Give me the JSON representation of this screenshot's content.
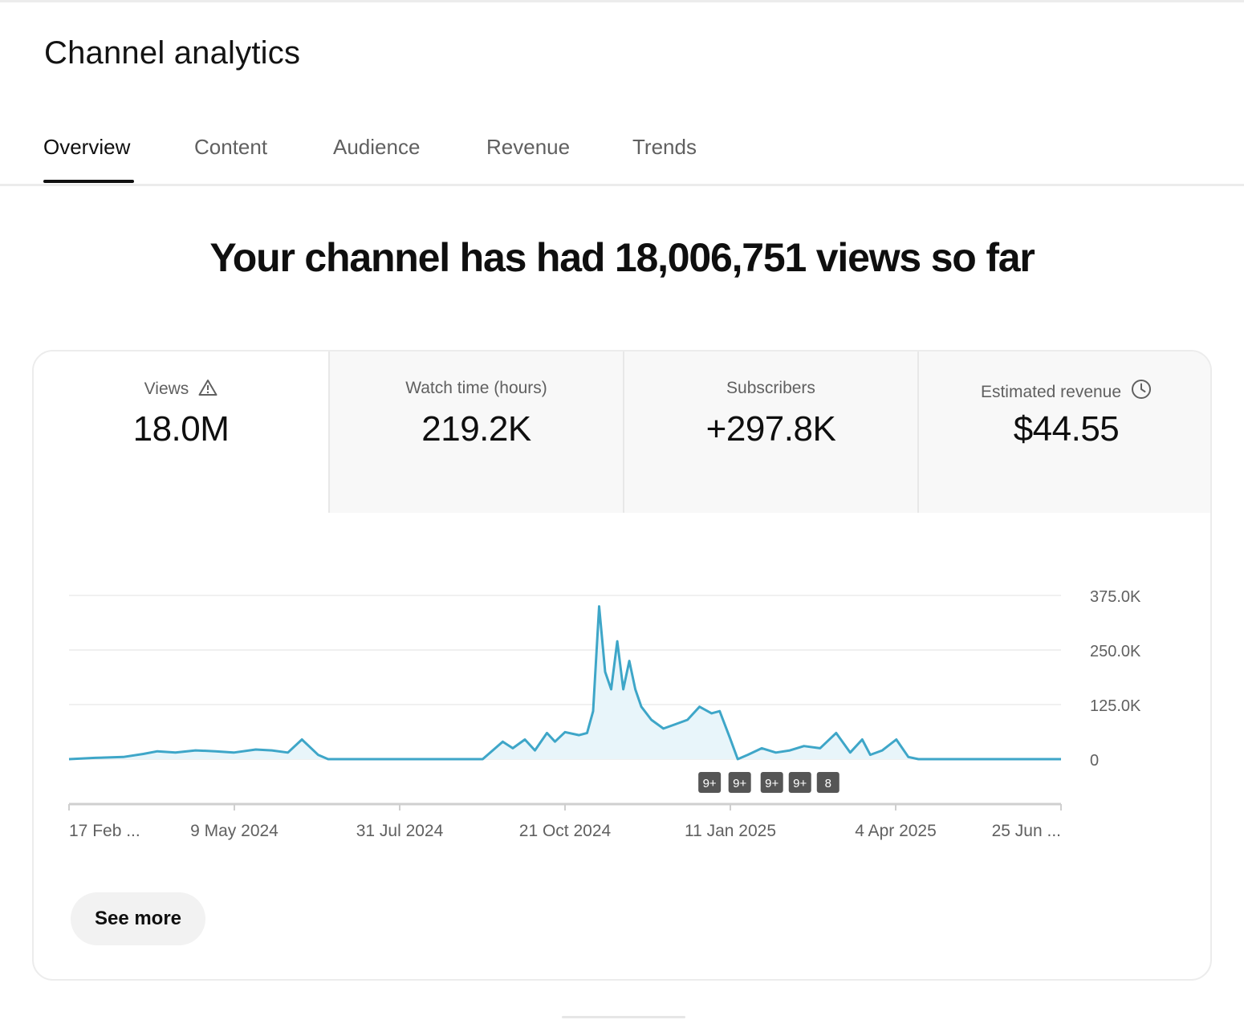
{
  "page": {
    "title": "Channel analytics"
  },
  "tabs": [
    {
      "label": "Overview",
      "active": true
    },
    {
      "label": "Content",
      "active": false
    },
    {
      "label": "Audience",
      "active": false
    },
    {
      "label": "Revenue",
      "active": false
    },
    {
      "label": "Trends",
      "active": false
    }
  ],
  "headline": "Your channel has had 18,006,751 views so far",
  "metrics": [
    {
      "label": "Views",
      "value": "18.0M",
      "icon": "warning-triangle-icon",
      "selected": true
    },
    {
      "label": "Watch time (hours)",
      "value": "219.2K",
      "selected": false
    },
    {
      "label": "Subscribers",
      "value": "+297.8K",
      "selected": false
    },
    {
      "label": "Estimated revenue",
      "value": "$44.55",
      "icon": "clock-icon",
      "selected": false
    }
  ],
  "see_more_label": "See more",
  "colors": {
    "line": "#3ea6c8",
    "area": "#e8f5fa",
    "badge": "#555555",
    "text_secondary": "#606060"
  },
  "chart_data": {
    "type": "area",
    "title": "",
    "xlabel": "",
    "ylabel": "",
    "y_tick_labels": [
      "375.0K",
      "250.0K",
      "125.0K",
      "0"
    ],
    "y_ticks": [
      375000,
      250000,
      125000,
      0
    ],
    "ylim": [
      0,
      375000
    ],
    "x_range": [
      "2024-02-17",
      "2025-06-25"
    ],
    "x_tick_labels": [
      "17 Feb ...",
      "9 May 2024",
      "31 Jul 2024",
      "21 Oct 2024",
      "11 Jan 2025",
      "4 Apr 2025",
      "25 Jun ..."
    ],
    "grid": true,
    "legend": "none",
    "series": [
      {
        "x": [
          "2024-02-17",
          "2024-03-01",
          "2024-03-15",
          "2024-03-25",
          "2024-04-01",
          "2024-04-10",
          "2024-04-20",
          "2024-04-30",
          "2024-05-09",
          "2024-05-20",
          "2024-05-28",
          "2024-06-05",
          "2024-06-12",
          "2024-06-20",
          "2024-06-25",
          "2024-07-01",
          "2024-07-10",
          "2024-07-20",
          "2024-07-31",
          "2024-08-10",
          "2024-08-20",
          "2024-08-31",
          "2024-09-10",
          "2024-09-15",
          "2024-09-20",
          "2024-09-25",
          "2024-10-01",
          "2024-10-06",
          "2024-10-12",
          "2024-10-16",
          "2024-10-21",
          "2024-10-28",
          "2024-11-01",
          "2024-11-04",
          "2024-11-07",
          "2024-11-10",
          "2024-11-13",
          "2024-11-16",
          "2024-11-19",
          "2024-11-22",
          "2024-11-25",
          "2024-11-28",
          "2024-12-03",
          "2024-12-09",
          "2024-12-15",
          "2024-12-21",
          "2024-12-27",
          "2025-01-02",
          "2025-01-06",
          "2025-01-11",
          "2025-01-15",
          "2025-01-20",
          "2025-01-27",
          "2025-02-03",
          "2025-02-10",
          "2025-02-17",
          "2025-02-25",
          "2025-03-05",
          "2025-03-12",
          "2025-03-18",
          "2025-03-22",
          "2025-03-28",
          "2025-04-04",
          "2025-04-10",
          "2025-04-15",
          "2025-04-25",
          "2025-05-10",
          "2025-05-25",
          "2025-06-10",
          "2025-06-25"
        ],
        "values": [
          0,
          3000,
          5000,
          12000,
          18000,
          15000,
          20000,
          18000,
          15000,
          22000,
          20000,
          15000,
          45000,
          10000,
          0,
          0,
          0,
          0,
          0,
          0,
          0,
          0,
          0,
          20000,
          40000,
          25000,
          45000,
          20000,
          60000,
          40000,
          62000,
          55000,
          60000,
          110000,
          350000,
          200000,
          160000,
          270000,
          160000,
          225000,
          160000,
          120000,
          90000,
          70000,
          80000,
          90000,
          120000,
          105000,
          110000,
          50000,
          0,
          10000,
          25000,
          15000,
          20000,
          30000,
          25000,
          60000,
          15000,
          45000,
          10000,
          20000,
          45000,
          5000,
          0,
          0,
          0,
          0,
          0,
          0
        ]
      }
    ],
    "annotation_badges": [
      {
        "label": "9+",
        "x": "2025-01-01"
      },
      {
        "label": "9+",
        "x": "2025-01-16"
      },
      {
        "label": "9+",
        "x": "2025-02-01"
      },
      {
        "label": "9+",
        "x": "2025-02-15"
      },
      {
        "label": "8",
        "x": "2025-03-01"
      }
    ]
  }
}
